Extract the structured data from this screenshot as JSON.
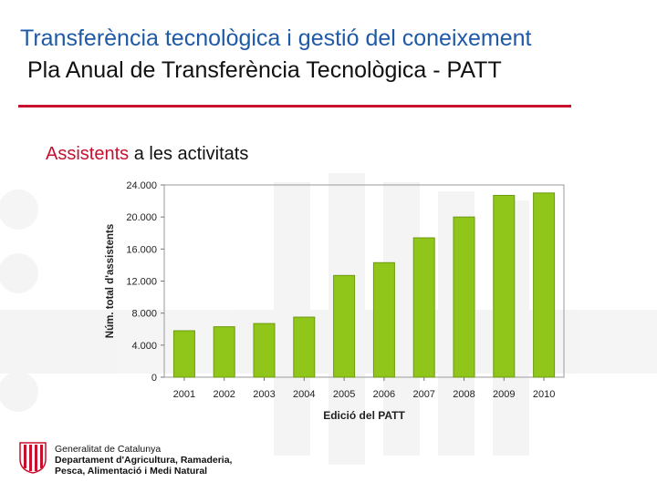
{
  "header": {
    "title": "Transferència tecnològica i gestió del coneixement",
    "subtitle": "Pla Anual de Transferència Tecnològica - PATT"
  },
  "section": {
    "highlight": "Assistents",
    "rest": " a les activitats"
  },
  "footer": {
    "line1": "Generalitat de Catalunya",
    "line2": "Departament d'Agricultura, Ramaderia,",
    "line3": "Pesca, Alimentació i Medi Natural"
  },
  "colors": {
    "title_blue": "#1f5aa6",
    "accent_red": "#c8102e",
    "bar_green": "#8fc619",
    "bar_edge": "#6e9a10"
  },
  "chart_data": {
    "type": "bar",
    "title": "",
    "xlabel": "Edició del PATT",
    "ylabel": "Núm. total d'assistents",
    "categories": [
      "2001",
      "2002",
      "2003",
      "2004",
      "2005",
      "2006",
      "2007",
      "2008",
      "2009",
      "2010"
    ],
    "values": [
      5800,
      6300,
      6700,
      7500,
      12700,
      14300,
      17400,
      20000,
      22700,
      23000
    ],
    "ylim": [
      0,
      24000
    ],
    "yticks": [
      0,
      4000,
      8000,
      12000,
      16000,
      20000,
      24000
    ],
    "ytick_labels": [
      "0",
      "4.000",
      "8.000",
      "12.000",
      "16.000",
      "20.000",
      "24.000"
    ],
    "grid": false,
    "legend": "none"
  }
}
